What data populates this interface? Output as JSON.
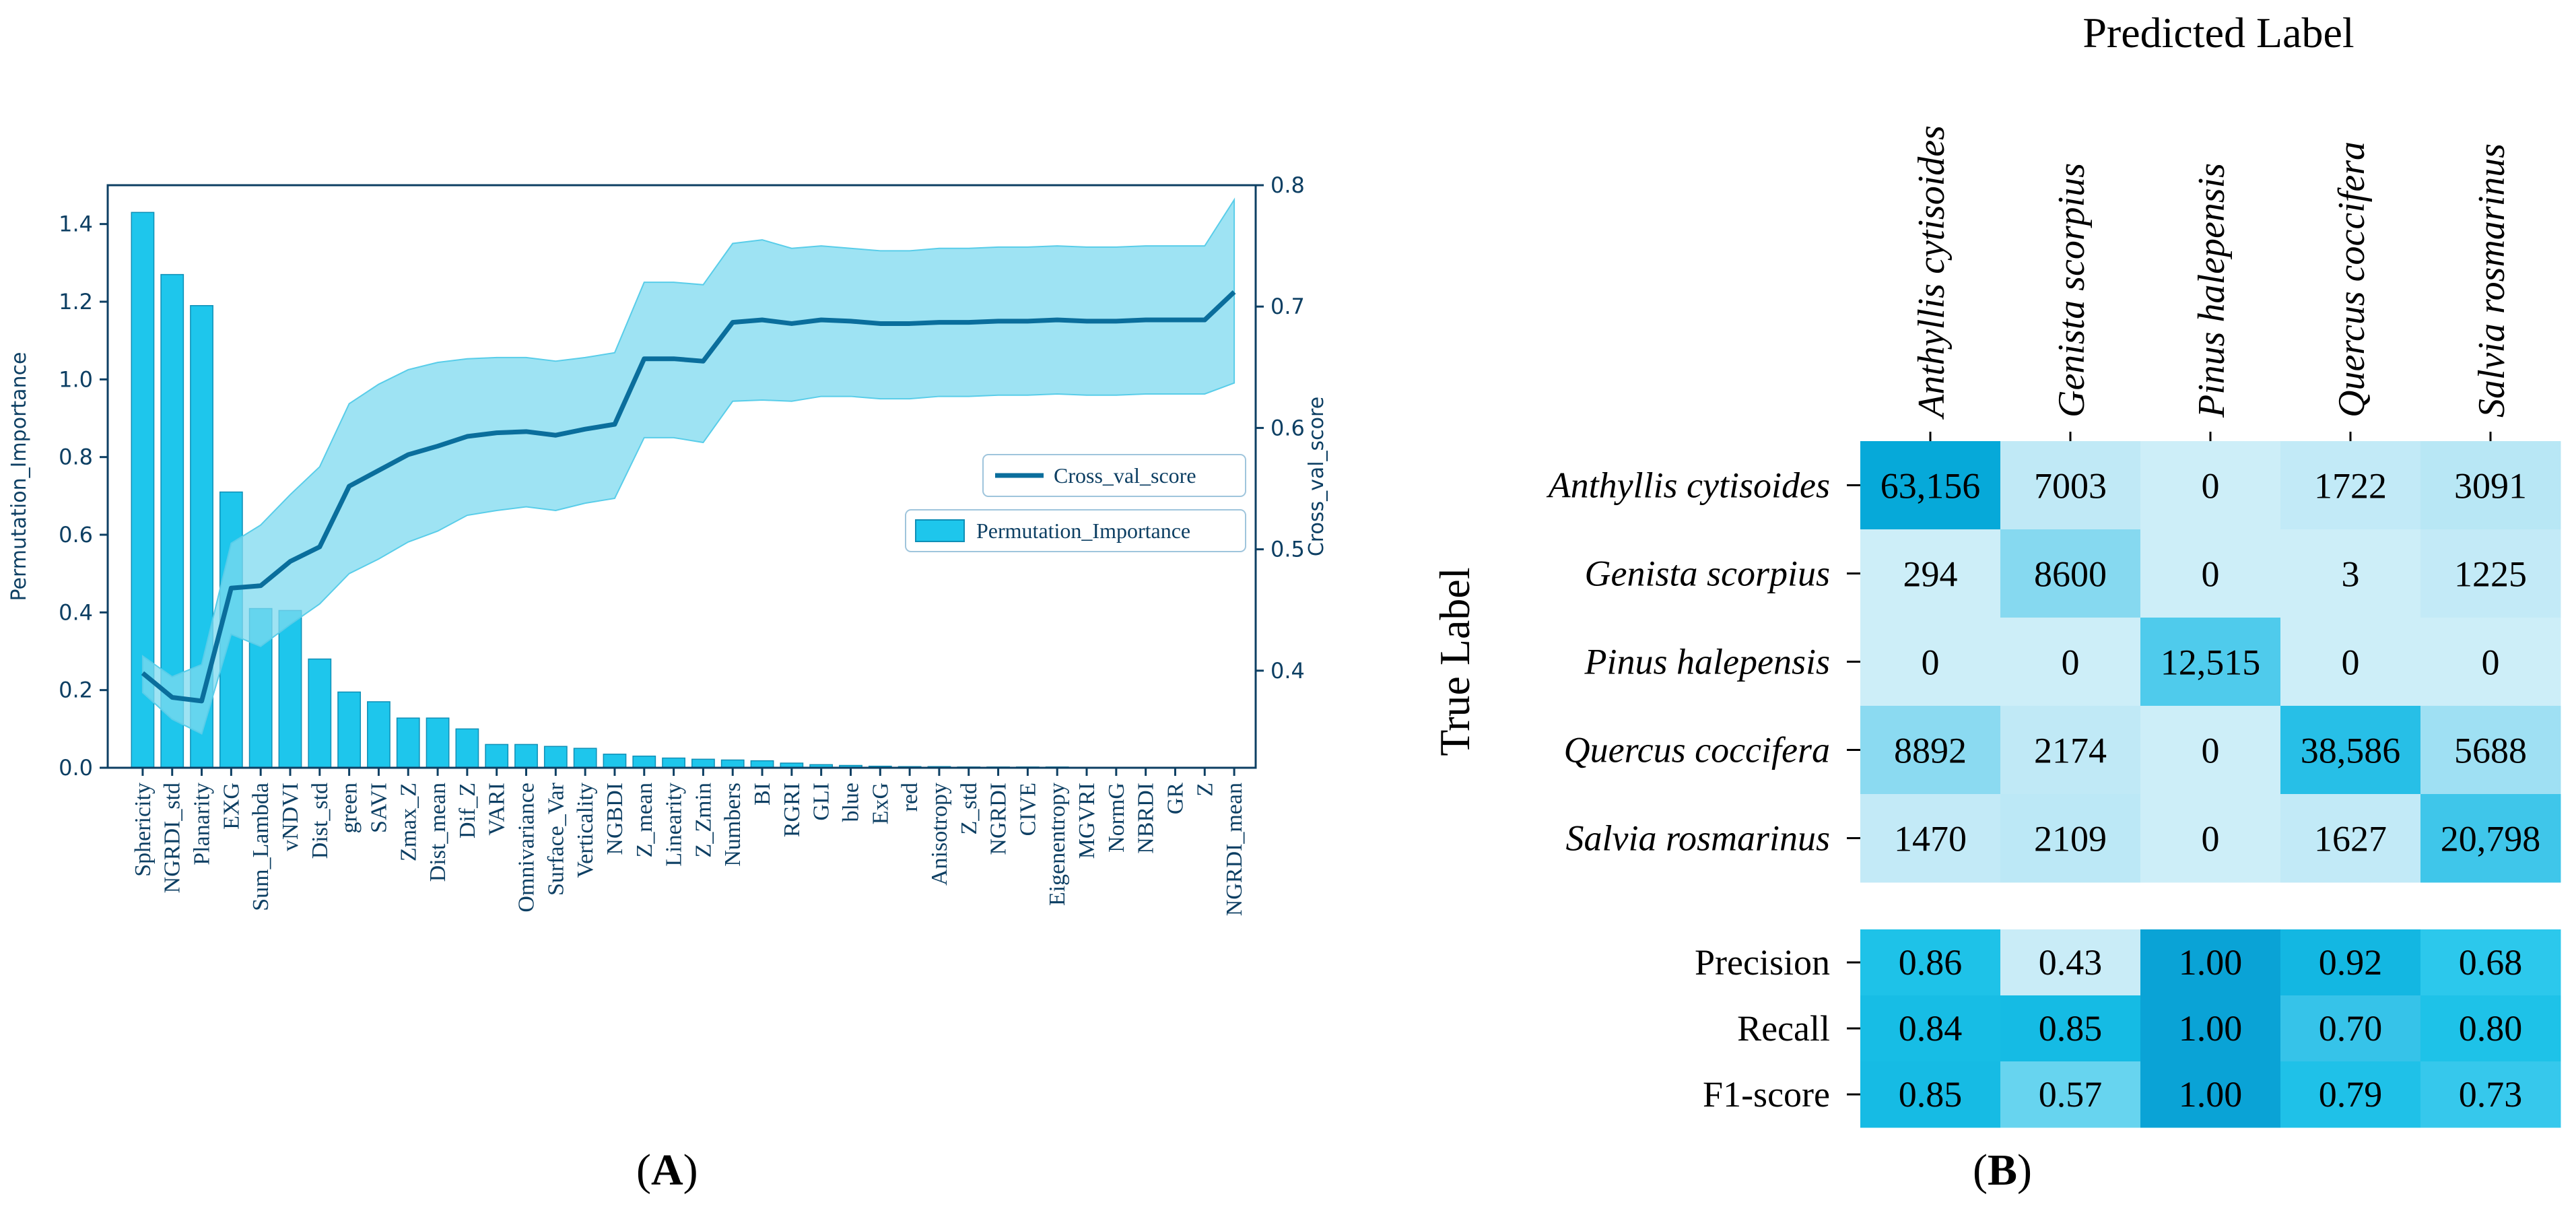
{
  "chart_data": [
    {
      "type": "bar",
      "panel": "A",
      "caption": "A",
      "ylabel_left": "Permutation_Importance",
      "ylabel_right": "Cross_val_score",
      "ylim_left": [
        0,
        1.5
      ],
      "ylim_right": [
        0.32,
        0.8
      ],
      "yticks_left": [
        "0.0",
        "0.2",
        "0.4",
        "0.6",
        "0.8",
        "1.0",
        "1.2",
        "1.4"
      ],
      "yticks_right": [
        "0.4",
        "0.5",
        "0.6",
        "0.7",
        "0.8"
      ],
      "legend_position": "center-right",
      "categories": [
        "Sphericity",
        "NGRDI_std",
        "Planarity",
        "EXG",
        "Sum_Lambda",
        "vNDVI",
        "Dist_std",
        "green",
        "SAVI",
        "Zmax_Z",
        "Dist_mean",
        "Dif_Z",
        "VARI",
        "Omnivariance",
        "Surface_Var",
        "Verticality",
        "NGBDI",
        "Z_mean",
        "Linearity",
        "Z_Zmin",
        "Numbers",
        "BI",
        "RGRI",
        "GLI",
        "blue",
        "ExG",
        "red",
        "Anisotropy",
        "Z_std",
        "NGRDI",
        "CIVE",
        "Eigenentropy",
        "MGVRI",
        "NormG",
        "NBRDI",
        "GR",
        "Z",
        "NGRDI_mean"
      ],
      "series": [
        {
          "name": "Permutation_Importance",
          "kind": "bar",
          "color": "#1ec6ec",
          "values": [
            1.43,
            1.27,
            1.19,
            0.71,
            0.41,
            0.405,
            0.28,
            0.195,
            0.17,
            0.128,
            0.128,
            0.1,
            0.06,
            0.06,
            0.055,
            0.05,
            0.035,
            0.03,
            0.025,
            0.022,
            0.02,
            0.018,
            0.012,
            0.008,
            0.006,
            0.004,
            0.003,
            0.003,
            0.002,
            0.002,
            0.002,
            0.002,
            0.001,
            0.001,
            0.001,
            0.001,
            0.001,
            0.001
          ]
        },
        {
          "name": "Cross_val_score",
          "kind": "line",
          "color": "#0a6e9c",
          "values": [
            0.398,
            0.378,
            0.375,
            0.468,
            0.47,
            0.49,
            0.502,
            0.552,
            0.565,
            0.578,
            0.585,
            0.593,
            0.596,
            0.597,
            0.594,
            0.599,
            0.603,
            0.657,
            0.657,
            0.655,
            0.687,
            0.689,
            0.686,
            0.689,
            0.688,
            0.686,
            0.686,
            0.687,
            0.687,
            0.688,
            0.688,
            0.689,
            0.688,
            0.688,
            0.689,
            0.689,
            0.689,
            0.712
          ],
          "band_upper": [
            0.412,
            0.395,
            0.405,
            0.505,
            0.52,
            0.545,
            0.568,
            0.62,
            0.636,
            0.648,
            0.654,
            0.657,
            0.658,
            0.658,
            0.655,
            0.658,
            0.662,
            0.72,
            0.72,
            0.718,
            0.752,
            0.755,
            0.748,
            0.75,
            0.748,
            0.746,
            0.746,
            0.748,
            0.748,
            0.749,
            0.749,
            0.75,
            0.749,
            0.749,
            0.75,
            0.75,
            0.75,
            0.788
          ],
          "band_lower": [
            0.382,
            0.36,
            0.348,
            0.43,
            0.42,
            0.438,
            0.455,
            0.48,
            0.492,
            0.506,
            0.515,
            0.528,
            0.532,
            0.535,
            0.532,
            0.538,
            0.542,
            0.592,
            0.592,
            0.588,
            0.622,
            0.623,
            0.622,
            0.626,
            0.626,
            0.624,
            0.624,
            0.626,
            0.626,
            0.627,
            0.627,
            0.628,
            0.627,
            0.627,
            0.628,
            0.628,
            0.628,
            0.637
          ]
        }
      ],
      "band_color": "#7ed9ef"
    },
    {
      "type": "heatmap",
      "panel": "B",
      "caption": "B",
      "xlabel": "Predicted Label",
      "ylabel": "True Label",
      "classes": [
        "Anthyllis cytisoides",
        "Genista scorpius",
        "Pinus halepensis",
        "Quercus coccifera",
        "Salvia rosmarinus"
      ],
      "matrix": [
        [
          "63,156",
          "7003",
          "0",
          "1722",
          "3091"
        ],
        [
          "294",
          "8600",
          "0",
          "3",
          "1225"
        ],
        [
          "0",
          "0",
          "12,515",
          "0",
          "0"
        ],
        [
          "8892",
          "2174",
          "0",
          "38,586",
          "5688"
        ],
        [
          "1470",
          "2109",
          "0",
          "1627",
          "20,798"
        ]
      ],
      "matrix_colors": [
        [
          "#06a9d9",
          "#c0e9f6",
          "#cdeef8",
          "#c2eaf7",
          "#b8e7f5"
        ],
        [
          "#cdeef8",
          "#86d9f0",
          "#cdeef8",
          "#cdeef8",
          "#c3eaf7"
        ],
        [
          "#cdeef8",
          "#cdeef8",
          "#4fcbec",
          "#cdeef8",
          "#cdeef8"
        ],
        [
          "#8bdaf1",
          "#c0e9f6",
          "#cdeef8",
          "#27bfe7",
          "#9fe0f3"
        ],
        [
          "#c3eaf7",
          "#bce8f6",
          "#cdeef8",
          "#c2eaf7",
          "#3fc6ea"
        ]
      ],
      "metrics_rows": [
        "Precision",
        "Recall",
        "F1-score"
      ],
      "metrics": [
        [
          "0.86",
          "0.43",
          "1.00",
          "0.92",
          "0.68"
        ],
        [
          "0.84",
          "0.85",
          "1.00",
          "0.70",
          "0.80"
        ],
        [
          "0.85",
          "0.57",
          "1.00",
          "0.79",
          "0.73"
        ]
      ],
      "metrics_colors": [
        [
          "#1ec2e8",
          "#c9ecf7",
          "#0aa3d6",
          "#13b7e2",
          "#2cc8ec"
        ],
        [
          "#17bde5",
          "#15bbe4",
          "#0aa3d6",
          "#36c3e9",
          "#1ec2e8"
        ],
        [
          "#16bbe4",
          "#67d4ef",
          "#0aa3d6",
          "#1fc1e8",
          "#36c8ec"
        ]
      ]
    }
  ]
}
